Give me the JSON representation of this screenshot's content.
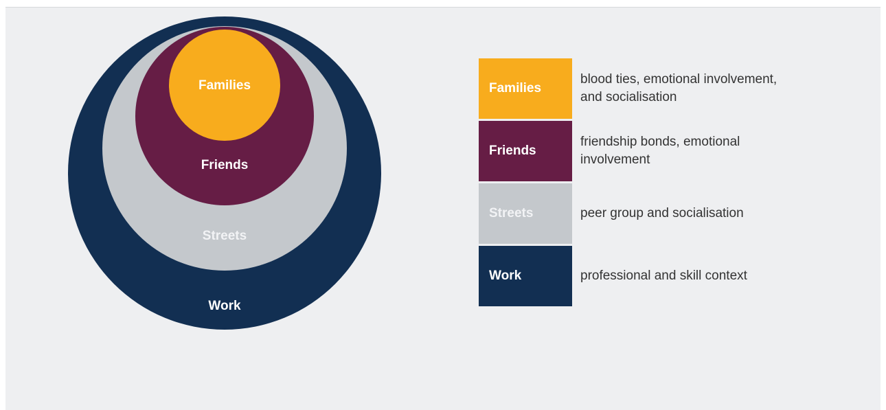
{
  "items": [
    {
      "label": "Families",
      "description": "blood ties, emotional involvement, and socialisation"
    },
    {
      "label": "Friends",
      "description": "friendship bonds, emotional involvement"
    },
    {
      "label": "Streets",
      "description": "peer group and socialisation"
    },
    {
      "label": "Work",
      "description": "professional and skill context"
    }
  ]
}
